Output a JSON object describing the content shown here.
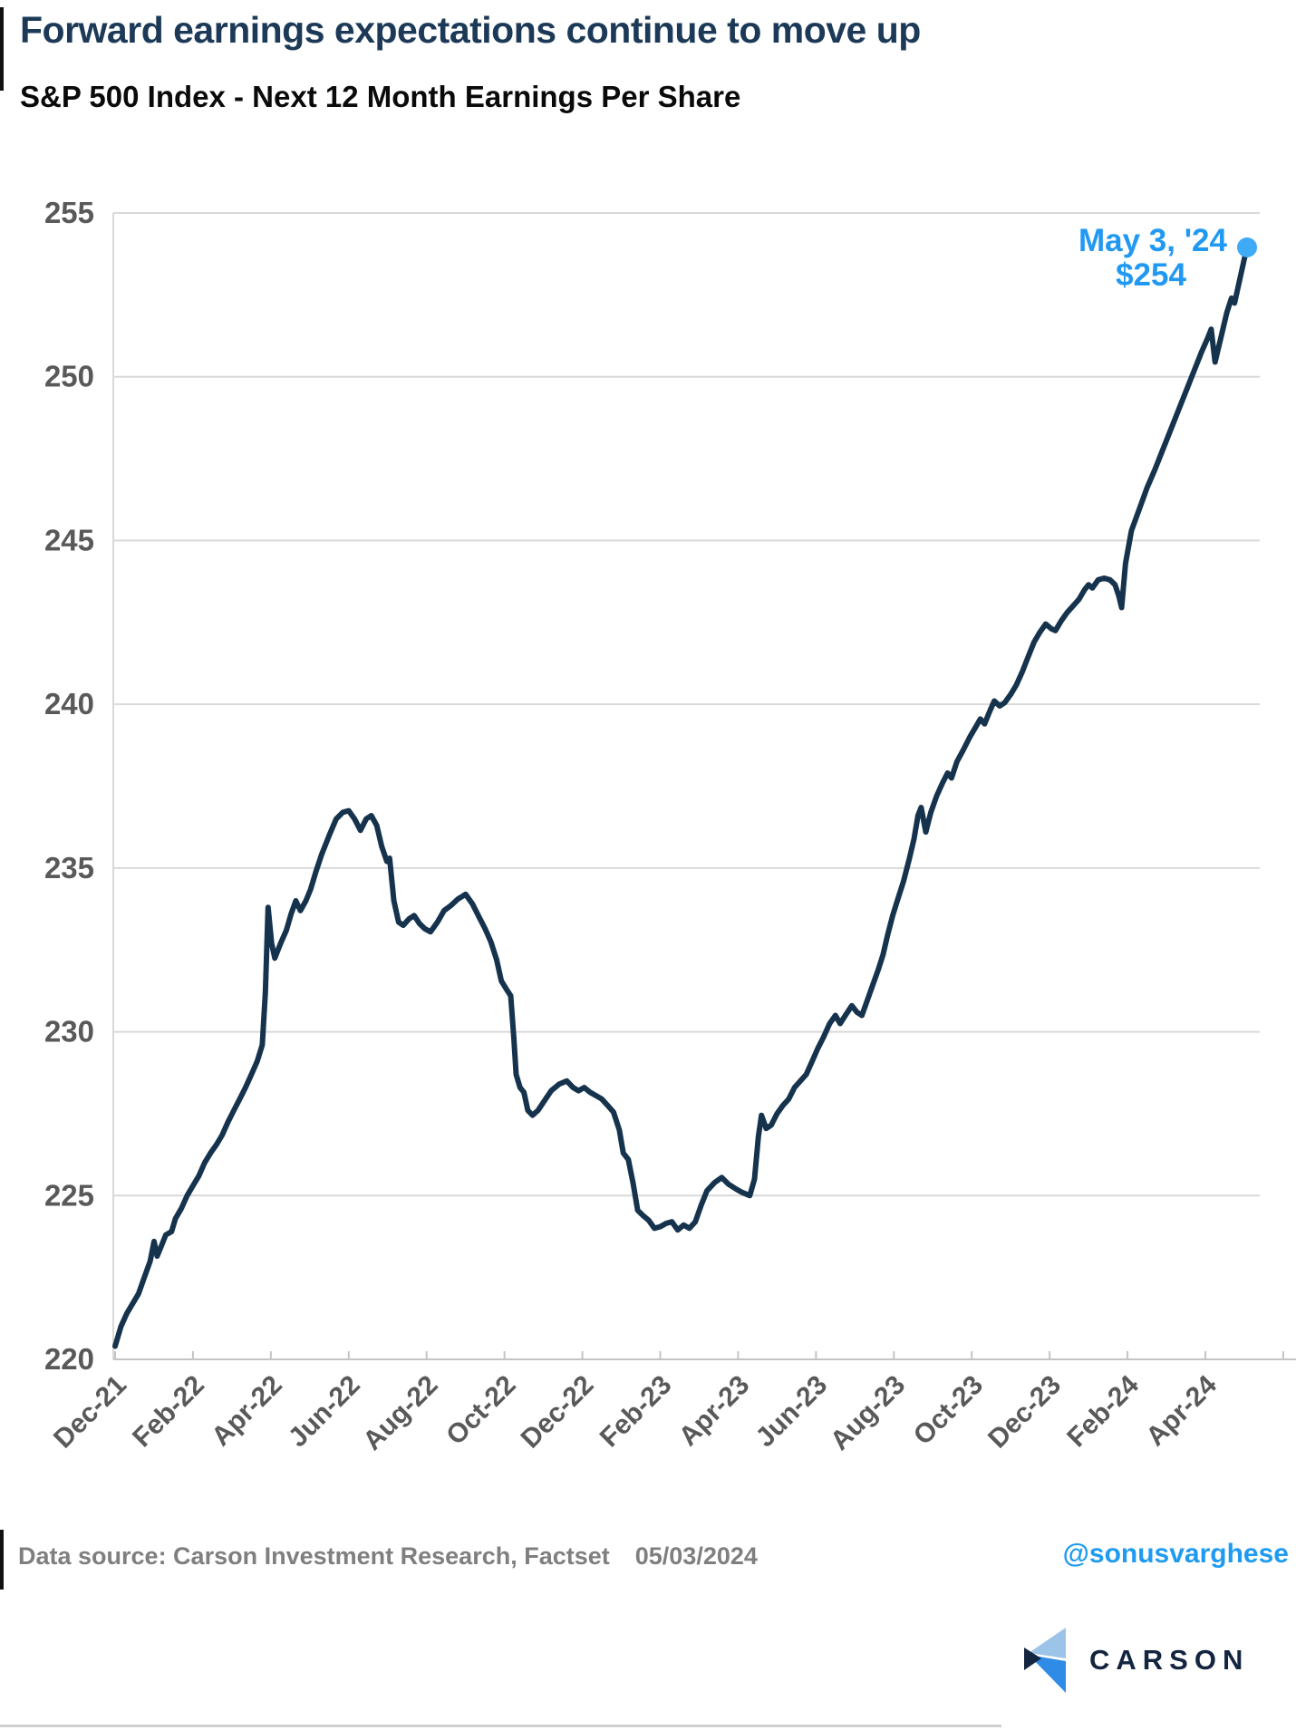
{
  "header": {
    "title": "Forward earnings expectations continue to move up",
    "subtitle": "S&P 500 Index - Next 12 Month Earnings Per Share"
  },
  "footer": {
    "source_label": "Data source: Carson Investment Research, Factset",
    "date": "05/03/2024",
    "handle": "@sonusvarghese",
    "logo_text": "CARSON"
  },
  "colors": {
    "title": "#1c3a58",
    "line": "#16334e",
    "annotation": "#2199f2",
    "dot": "#3faaf6",
    "handle": "#1e9bf0",
    "gridline": "#d9d9d9",
    "axis": "#c4c4c4",
    "tick_label": "#595959",
    "logo_light_blue": "#9cc4e8",
    "logo_blue": "#2e8be6",
    "logo_navy": "#13253f"
  },
  "chart_data": {
    "type": "line",
    "title": "Forward earnings expectations continue to move up",
    "subtitle": "S&P 500 Index - Next 12 Month Earnings Per Share",
    "xlabel": "",
    "ylabel": "",
    "ylim": [
      220,
      255
    ],
    "y_ticks": [
      220,
      225,
      230,
      235,
      240,
      245,
      250,
      255
    ],
    "grid": "horizontal",
    "legend": "none",
    "x_tick_labels": [
      "Dec-21",
      "Feb-22",
      "Apr-22",
      "Jun-22",
      "Aug-22",
      "Oct-22",
      "Dec-22",
      "Feb-23",
      "Apr-23",
      "Jun-23",
      "Aug-23",
      "Oct-23",
      "Dec-23",
      "Feb-24",
      "Apr-24"
    ],
    "x_unit": "months since Dec-2021, labels every 2 months",
    "annotation": {
      "date_label": "May 3, '24",
      "value_label": "$254",
      "t": 29.07,
      "value": 253.95
    },
    "series": [
      {
        "name": "S&P 500 NTM EPS",
        "points": [
          [
            0,
            220.4
          ],
          [
            0.15,
            221
          ],
          [
            0.3,
            221.4
          ],
          [
            0.45,
            221.7
          ],
          [
            0.6,
            222
          ],
          [
            0.75,
            222.5
          ],
          [
            0.9,
            223
          ],
          [
            1,
            223.6
          ],
          [
            1.08,
            223.15
          ],
          [
            1.2,
            223.5
          ],
          [
            1.3,
            223.8
          ],
          [
            1.45,
            223.9
          ],
          [
            1.55,
            224.3
          ],
          [
            1.7,
            224.6
          ],
          [
            1.85,
            225
          ],
          [
            2,
            225.3
          ],
          [
            2.15,
            225.6
          ],
          [
            2.3,
            226
          ],
          [
            2.45,
            226.3
          ],
          [
            2.6,
            226.55
          ],
          [
            2.75,
            226.85
          ],
          [
            2.9,
            227.25
          ],
          [
            3.05,
            227.6
          ],
          [
            3.2,
            227.95
          ],
          [
            3.35,
            228.3
          ],
          [
            3.5,
            228.7
          ],
          [
            3.65,
            229.1
          ],
          [
            3.78,
            229.6
          ],
          [
            3.86,
            231.2
          ],
          [
            3.93,
            233.8
          ],
          [
            4.02,
            232.7
          ],
          [
            4.1,
            232.25
          ],
          [
            4.25,
            232.7
          ],
          [
            4.4,
            233.1
          ],
          [
            4.52,
            233.6
          ],
          [
            4.64,
            234
          ],
          [
            4.76,
            233.7
          ],
          [
            4.9,
            234
          ],
          [
            5.02,
            234.35
          ],
          [
            5.16,
            234.9
          ],
          [
            5.3,
            235.4
          ],
          [
            5.5,
            236
          ],
          [
            5.68,
            236.5
          ],
          [
            5.85,
            236.7
          ],
          [
            6,
            236.75
          ],
          [
            6.15,
            236.5
          ],
          [
            6.3,
            236.15
          ],
          [
            6.45,
            236.5
          ],
          [
            6.58,
            236.6
          ],
          [
            6.72,
            236.3
          ],
          [
            6.85,
            235.65
          ],
          [
            6.98,
            235.2
          ],
          [
            7.05,
            235.3
          ],
          [
            7.16,
            234
          ],
          [
            7.28,
            233.35
          ],
          [
            7.4,
            233.25
          ],
          [
            7.55,
            233.45
          ],
          [
            7.68,
            233.55
          ],
          [
            7.82,
            233.3
          ],
          [
            7.95,
            233.15
          ],
          [
            8.1,
            233.05
          ],
          [
            8.28,
            233.35
          ],
          [
            8.45,
            233.7
          ],
          [
            8.62,
            233.85
          ],
          [
            8.8,
            234.05
          ],
          [
            9,
            234.2
          ],
          [
            9.18,
            233.9
          ],
          [
            9.35,
            233.5
          ],
          [
            9.5,
            233.15
          ],
          [
            9.65,
            232.75
          ],
          [
            9.8,
            232.2
          ],
          [
            9.92,
            231.55
          ],
          [
            10.05,
            231.3
          ],
          [
            10.16,
            231.1
          ],
          [
            10.24,
            229.8
          ],
          [
            10.3,
            228.7
          ],
          [
            10.4,
            228.3
          ],
          [
            10.5,
            228.15
          ],
          [
            10.6,
            227.6
          ],
          [
            10.72,
            227.45
          ],
          [
            10.86,
            227.6
          ],
          [
            11,
            227.85
          ],
          [
            11.2,
            228.2
          ],
          [
            11.4,
            228.4
          ],
          [
            11.6,
            228.5
          ],
          [
            11.76,
            228.3
          ],
          [
            11.9,
            228.2
          ],
          [
            12.05,
            228.3
          ],
          [
            12.2,
            228.15
          ],
          [
            12.35,
            228.05
          ],
          [
            12.5,
            227.95
          ],
          [
            12.65,
            227.75
          ],
          [
            12.8,
            227.55
          ],
          [
            12.95,
            227
          ],
          [
            13.05,
            226.3
          ],
          [
            13.18,
            226.1
          ],
          [
            13.3,
            225.4
          ],
          [
            13.42,
            224.55
          ],
          [
            13.55,
            224.4
          ],
          [
            13.7,
            224.25
          ],
          [
            13.85,
            224
          ],
          [
            14,
            224.05
          ],
          [
            14.15,
            224.15
          ],
          [
            14.3,
            224.2
          ],
          [
            14.45,
            223.95
          ],
          [
            14.6,
            224.1
          ],
          [
            14.75,
            224
          ],
          [
            14.9,
            224.2
          ],
          [
            15.05,
            224.7
          ],
          [
            15.2,
            225.15
          ],
          [
            15.4,
            225.4
          ],
          [
            15.58,
            225.55
          ],
          [
            15.75,
            225.35
          ],
          [
            15.95,
            225.2
          ],
          [
            16.1,
            225.1
          ],
          [
            16.3,
            225
          ],
          [
            16.42,
            225.5
          ],
          [
            16.52,
            226.8
          ],
          [
            16.6,
            227.45
          ],
          [
            16.72,
            227.05
          ],
          [
            16.85,
            227.15
          ],
          [
            17,
            227.5
          ],
          [
            17.15,
            227.75
          ],
          [
            17.3,
            227.95
          ],
          [
            17.45,
            228.3
          ],
          [
            17.6,
            228.5
          ],
          [
            17.75,
            228.7
          ],
          [
            17.9,
            229.1
          ],
          [
            18.05,
            229.5
          ],
          [
            18.2,
            229.85
          ],
          [
            18.35,
            230.25
          ],
          [
            18.5,
            230.5
          ],
          [
            18.62,
            230.25
          ],
          [
            18.78,
            230.55
          ],
          [
            18.92,
            230.8
          ],
          [
            19.05,
            230.6
          ],
          [
            19.18,
            230.5
          ],
          [
            19.3,
            230.9
          ],
          [
            19.45,
            231.4
          ],
          [
            19.6,
            231.9
          ],
          [
            19.72,
            232.35
          ],
          [
            19.85,
            233
          ],
          [
            19.97,
            233.55
          ],
          [
            20.1,
            234.05
          ],
          [
            20.25,
            234.6
          ],
          [
            20.4,
            235.3
          ],
          [
            20.52,
            235.9
          ],
          [
            20.62,
            236.6
          ],
          [
            20.7,
            236.85
          ],
          [
            20.82,
            236.1
          ],
          [
            20.95,
            236.7
          ],
          [
            21.1,
            237.2
          ],
          [
            21.25,
            237.6
          ],
          [
            21.38,
            237.9
          ],
          [
            21.48,
            237.75
          ],
          [
            21.62,
            238.25
          ],
          [
            21.78,
            238.6
          ],
          [
            21.95,
            239
          ],
          [
            22.1,
            239.3
          ],
          [
            22.22,
            239.55
          ],
          [
            22.33,
            239.4
          ],
          [
            22.45,
            239.75
          ],
          [
            22.58,
            240.1
          ],
          [
            22.72,
            239.95
          ],
          [
            22.85,
            240.05
          ],
          [
            23,
            240.3
          ],
          [
            23.15,
            240.6
          ],
          [
            23.3,
            241
          ],
          [
            23.45,
            241.45
          ],
          [
            23.6,
            241.9
          ],
          [
            23.75,
            242.2
          ],
          [
            23.9,
            242.45
          ],
          [
            24.05,
            242.3
          ],
          [
            24.15,
            242.25
          ],
          [
            24.3,
            242.55
          ],
          [
            24.45,
            242.8
          ],
          [
            24.6,
            243
          ],
          [
            24.75,
            243.2
          ],
          [
            24.9,
            243.5
          ],
          [
            25,
            243.65
          ],
          [
            25.1,
            243.55
          ],
          [
            25.25,
            243.8
          ],
          [
            25.4,
            243.85
          ],
          [
            25.55,
            243.8
          ],
          [
            25.68,
            243.65
          ],
          [
            25.78,
            243.3
          ],
          [
            25.85,
            242.95
          ],
          [
            25.95,
            244.3
          ],
          [
            26.1,
            245.3
          ],
          [
            26.3,
            245.95
          ],
          [
            26.5,
            246.6
          ],
          [
            26.7,
            247.15
          ],
          [
            26.9,
            247.75
          ],
          [
            27.1,
            248.35
          ],
          [
            27.3,
            248.95
          ],
          [
            27.5,
            249.55
          ],
          [
            27.7,
            250.15
          ],
          [
            27.9,
            250.75
          ],
          [
            28.05,
            251.15
          ],
          [
            28.15,
            251.45
          ],
          [
            28.25,
            250.45
          ],
          [
            28.4,
            251.2
          ],
          [
            28.55,
            251.95
          ],
          [
            28.67,
            252.4
          ],
          [
            28.75,
            252.25
          ],
          [
            28.88,
            252.95
          ],
          [
            29,
            253.6
          ],
          [
            29.07,
            253.95
          ]
        ]
      }
    ]
  }
}
